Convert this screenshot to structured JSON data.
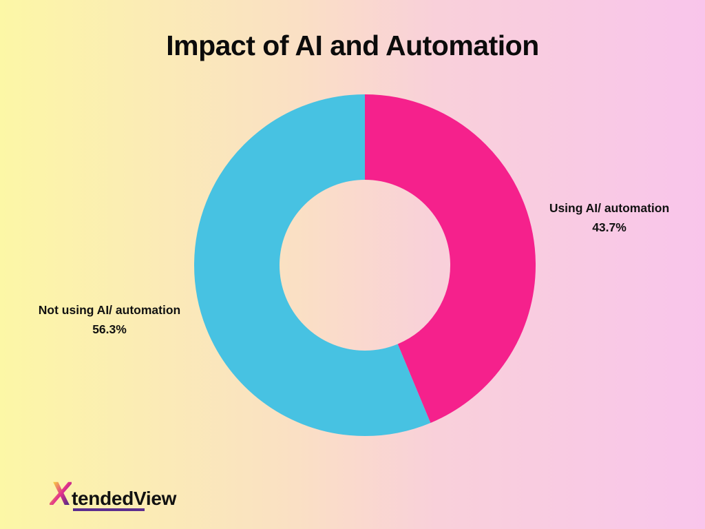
{
  "page": {
    "title": "Impact of AI and Automation"
  },
  "chart_data": {
    "type": "pie",
    "style": "donut",
    "title": "Impact of AI and Automation",
    "direction": "clockwise",
    "start_angle_deg": 0,
    "inner_radius_ratio": 0.5,
    "legend_position": "none",
    "labels_outside": true,
    "slices": [
      {
        "label": "Using AI/ automation",
        "value": 43.7,
        "display": "43.7%",
        "color": "#f5218c"
      },
      {
        "label": "Not using AI/ automation",
        "value": 56.3,
        "display": "56.3%",
        "color": "#47c2e2"
      }
    ]
  },
  "logo": {
    "x": "X",
    "tended": "tended",
    "view": "View"
  },
  "colors": {
    "bg_left": "#fcf7a6",
    "bg_right": "#f9c5eb",
    "title_text": "#0b0b0b",
    "label_text": "#111111",
    "logo_underline": "#5b2d8e"
  }
}
